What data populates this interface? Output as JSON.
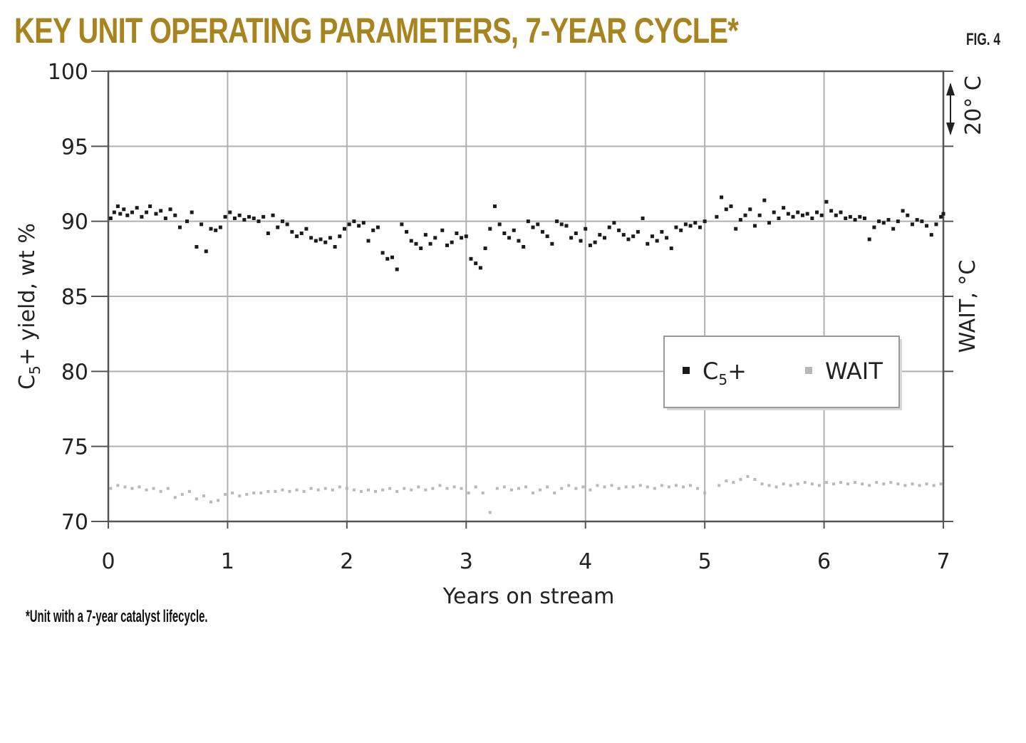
{
  "figure": {
    "title": "KEY UNIT OPERATING PARAMETERS, 7-YEAR CYCLE*",
    "label": "FIG. 4",
    "footnote": "*Unit with a 7-year catalyst lifecycle."
  },
  "colors": {
    "title": "#a8841e",
    "c5_points": "#1a1a1a",
    "wait_points": "#b8b8b8",
    "grid": "#b0b0b0",
    "axis": "#555555"
  },
  "chart_data": {
    "type": "scatter",
    "xlabel": "Years on stream",
    "ylabel": "C",
    "ylabel_sub": "5",
    "ylabel_rest": "+ yield, wt %",
    "y2label": "WAIT, °C",
    "y2_scale_note": "20° C",
    "xlim": [
      0,
      7
    ],
    "ylim": [
      70,
      100
    ],
    "xticks": [
      0,
      1,
      2,
      3,
      4,
      5,
      6,
      7
    ],
    "xtick_labels": [
      "0",
      "1",
      "2",
      "3",
      "4",
      "5",
      "6",
      "7"
    ],
    "yticks": [
      70,
      75,
      80,
      85,
      90,
      95,
      100
    ],
    "ytick_labels": [
      "70",
      "75",
      "80",
      "85",
      "90",
      "95",
      "100"
    ],
    "grid": true,
    "legend_position": "center-right",
    "legend": [
      {
        "label": "C",
        "sub": "5",
        "suffix": "+",
        "series": "c5"
      },
      {
        "label": "WAIT",
        "series": "wait"
      }
    ],
    "series": [
      {
        "key": "c5",
        "points": [
          [
            0.02,
            90.2
          ],
          [
            0.05,
            90.6
          ],
          [
            0.08,
            91.0
          ],
          [
            0.1,
            90.5
          ],
          [
            0.13,
            90.8
          ],
          [
            0.16,
            90.4
          ],
          [
            0.2,
            90.6
          ],
          [
            0.24,
            90.9
          ],
          [
            0.28,
            90.3
          ],
          [
            0.32,
            90.6
          ],
          [
            0.35,
            91.0
          ],
          [
            0.4,
            90.5
          ],
          [
            0.44,
            90.7
          ],
          [
            0.48,
            90.2
          ],
          [
            0.52,
            90.8
          ],
          [
            0.56,
            90.4
          ],
          [
            0.6,
            89.6
          ],
          [
            0.66,
            90.0
          ],
          [
            0.7,
            90.6
          ],
          [
            0.74,
            88.3
          ],
          [
            0.78,
            89.8
          ],
          [
            0.82,
            88.0
          ],
          [
            0.86,
            89.5
          ],
          [
            0.9,
            89.4
          ],
          [
            0.94,
            89.6
          ],
          [
            0.98,
            90.3
          ],
          [
            1.02,
            90.6
          ],
          [
            1.06,
            90.2
          ],
          [
            1.1,
            90.4
          ],
          [
            1.14,
            90.1
          ],
          [
            1.18,
            90.3
          ],
          [
            1.22,
            90.2
          ],
          [
            1.26,
            90.0
          ],
          [
            1.3,
            90.3
          ],
          [
            1.34,
            89.2
          ],
          [
            1.38,
            90.4
          ],
          [
            1.42,
            89.6
          ],
          [
            1.46,
            90.0
          ],
          [
            1.5,
            89.8
          ],
          [
            1.54,
            89.3
          ],
          [
            1.58,
            89.0
          ],
          [
            1.62,
            89.2
          ],
          [
            1.66,
            89.5
          ],
          [
            1.7,
            88.9
          ],
          [
            1.74,
            88.7
          ],
          [
            1.78,
            88.8
          ],
          [
            1.82,
            88.6
          ],
          [
            1.86,
            88.9
          ],
          [
            1.9,
            88.3
          ],
          [
            1.94,
            89.0
          ],
          [
            1.98,
            89.5
          ],
          [
            2.02,
            89.8
          ],
          [
            2.06,
            90.0
          ],
          [
            2.1,
            89.7
          ],
          [
            2.14,
            89.9
          ],
          [
            2.18,
            88.7
          ],
          [
            2.22,
            89.4
          ],
          [
            2.26,
            89.6
          ],
          [
            2.3,
            87.9
          ],
          [
            2.34,
            87.5
          ],
          [
            2.38,
            87.6
          ],
          [
            2.42,
            86.8
          ],
          [
            2.46,
            89.8
          ],
          [
            2.5,
            89.3
          ],
          [
            2.54,
            88.7
          ],
          [
            2.58,
            88.5
          ],
          [
            2.62,
            88.2
          ],
          [
            2.66,
            89.1
          ],
          [
            2.7,
            88.5
          ],
          [
            2.74,
            88.9
          ],
          [
            2.8,
            89.4
          ],
          [
            2.84,
            88.4
          ],
          [
            2.88,
            88.6
          ],
          [
            2.92,
            89.2
          ],
          [
            2.96,
            88.9
          ],
          [
            3.0,
            89.0
          ],
          [
            3.04,
            87.5
          ],
          [
            3.08,
            87.2
          ],
          [
            3.12,
            86.9
          ],
          [
            3.16,
            88.2
          ],
          [
            3.2,
            89.5
          ],
          [
            3.24,
            91.0
          ],
          [
            3.28,
            89.8
          ],
          [
            3.32,
            89.2
          ],
          [
            3.36,
            88.9
          ],
          [
            3.4,
            89.4
          ],
          [
            3.44,
            88.7
          ],
          [
            3.48,
            88.3
          ],
          [
            3.52,
            90.0
          ],
          [
            3.56,
            89.6
          ],
          [
            3.6,
            89.8
          ],
          [
            3.64,
            89.3
          ],
          [
            3.68,
            89.0
          ],
          [
            3.72,
            88.5
          ],
          [
            3.76,
            90.0
          ],
          [
            3.8,
            89.8
          ],
          [
            3.84,
            89.7
          ],
          [
            3.88,
            88.9
          ],
          [
            3.92,
            89.2
          ],
          [
            3.96,
            88.7
          ],
          [
            4.0,
            89.5
          ],
          [
            4.04,
            88.4
          ],
          [
            4.08,
            88.6
          ],
          [
            4.12,
            89.1
          ],
          [
            4.16,
            88.9
          ],
          [
            4.2,
            89.6
          ],
          [
            4.24,
            89.9
          ],
          [
            4.28,
            89.4
          ],
          [
            4.32,
            89.1
          ],
          [
            4.36,
            88.8
          ],
          [
            4.4,
            89.0
          ],
          [
            4.44,
            89.3
          ],
          [
            4.48,
            90.2
          ],
          [
            4.52,
            88.5
          ],
          [
            4.56,
            89.0
          ],
          [
            4.6,
            88.7
          ],
          [
            4.64,
            89.3
          ],
          [
            4.68,
            88.9
          ],
          [
            4.72,
            88.2
          ],
          [
            4.76,
            89.6
          ],
          [
            4.8,
            89.4
          ],
          [
            4.84,
            89.8
          ],
          [
            4.88,
            89.7
          ],
          [
            4.92,
            89.9
          ],
          [
            4.96,
            89.6
          ],
          [
            5.0,
            90.0
          ],
          [
            5.1,
            90.3
          ],
          [
            5.14,
            91.6
          ],
          [
            5.18,
            90.8
          ],
          [
            5.22,
            91.0
          ],
          [
            5.26,
            89.5
          ],
          [
            5.3,
            90.1
          ],
          [
            5.34,
            90.4
          ],
          [
            5.38,
            90.8
          ],
          [
            5.42,
            89.7
          ],
          [
            5.46,
            90.4
          ],
          [
            5.5,
            91.4
          ],
          [
            5.54,
            89.9
          ],
          [
            5.58,
            90.6
          ],
          [
            5.62,
            90.2
          ],
          [
            5.66,
            90.9
          ],
          [
            5.7,
            90.5
          ],
          [
            5.74,
            90.3
          ],
          [
            5.78,
            90.6
          ],
          [
            5.82,
            90.4
          ],
          [
            5.86,
            90.5
          ],
          [
            5.9,
            90.2
          ],
          [
            5.94,
            90.6
          ],
          [
            5.98,
            90.4
          ],
          [
            6.02,
            91.3
          ],
          [
            6.06,
            90.7
          ],
          [
            6.1,
            90.4
          ],
          [
            6.14,
            90.6
          ],
          [
            6.18,
            90.2
          ],
          [
            6.22,
            90.3
          ],
          [
            6.26,
            90.1
          ],
          [
            6.3,
            90.3
          ],
          [
            6.34,
            90.2
          ],
          [
            6.38,
            88.8
          ],
          [
            6.42,
            89.6
          ],
          [
            6.46,
            90.0
          ],
          [
            6.5,
            89.9
          ],
          [
            6.54,
            90.1
          ],
          [
            6.58,
            89.5
          ],
          [
            6.62,
            90.0
          ],
          [
            6.66,
            90.7
          ],
          [
            6.7,
            90.4
          ],
          [
            6.74,
            89.8
          ],
          [
            6.78,
            90.1
          ],
          [
            6.82,
            90.0
          ],
          [
            6.86,
            89.7
          ],
          [
            6.9,
            89.1
          ],
          [
            6.94,
            89.8
          ],
          [
            6.98,
            90.3
          ],
          [
            7.0,
            90.5
          ]
        ]
      },
      {
        "key": "wait",
        "points": [
          [
            0.02,
            72.2
          ],
          [
            0.08,
            72.4
          ],
          [
            0.14,
            72.3
          ],
          [
            0.2,
            72.2
          ],
          [
            0.26,
            72.3
          ],
          [
            0.32,
            72.1
          ],
          [
            0.38,
            72.2
          ],
          [
            0.44,
            72.0
          ],
          [
            0.5,
            72.2
          ],
          [
            0.56,
            71.6
          ],
          [
            0.62,
            71.8
          ],
          [
            0.68,
            72.0
          ],
          [
            0.74,
            71.5
          ],
          [
            0.8,
            71.7
          ],
          [
            0.86,
            71.3
          ],
          [
            0.92,
            71.4
          ],
          [
            0.98,
            71.8
          ],
          [
            1.04,
            71.9
          ],
          [
            1.1,
            71.7
          ],
          [
            1.16,
            71.8
          ],
          [
            1.22,
            71.9
          ],
          [
            1.28,
            71.9
          ],
          [
            1.34,
            72.0
          ],
          [
            1.4,
            72.0
          ],
          [
            1.46,
            72.1
          ],
          [
            1.52,
            72.0
          ],
          [
            1.58,
            72.1
          ],
          [
            1.64,
            72.0
          ],
          [
            1.7,
            72.2
          ],
          [
            1.76,
            72.1
          ],
          [
            1.82,
            72.2
          ],
          [
            1.88,
            72.1
          ],
          [
            1.94,
            72.3
          ],
          [
            2.0,
            72.2
          ],
          [
            2.06,
            72.1
          ],
          [
            2.12,
            72.0
          ],
          [
            2.18,
            72.1
          ],
          [
            2.24,
            72.0
          ],
          [
            2.3,
            72.1
          ],
          [
            2.36,
            72.2
          ],
          [
            2.42,
            72.0
          ],
          [
            2.48,
            72.2
          ],
          [
            2.54,
            72.1
          ],
          [
            2.6,
            72.3
          ],
          [
            2.66,
            72.1
          ],
          [
            2.72,
            72.2
          ],
          [
            2.78,
            72.4
          ],
          [
            2.84,
            72.2
          ],
          [
            2.9,
            72.3
          ],
          [
            2.96,
            72.2
          ],
          [
            3.02,
            71.9
          ],
          [
            3.08,
            72.3
          ],
          [
            3.14,
            71.9
          ],
          [
            3.2,
            70.6
          ],
          [
            3.26,
            72.2
          ],
          [
            3.32,
            72.3
          ],
          [
            3.38,
            72.1
          ],
          [
            3.44,
            72.2
          ],
          [
            3.5,
            72.3
          ],
          [
            3.56,
            71.9
          ],
          [
            3.62,
            72.1
          ],
          [
            3.68,
            72.3
          ],
          [
            3.74,
            71.9
          ],
          [
            3.8,
            72.2
          ],
          [
            3.86,
            72.4
          ],
          [
            3.92,
            72.2
          ],
          [
            3.98,
            72.3
          ],
          [
            4.04,
            72.1
          ],
          [
            4.1,
            72.4
          ],
          [
            4.16,
            72.3
          ],
          [
            4.22,
            72.4
          ],
          [
            4.28,
            72.2
          ],
          [
            4.34,
            72.3
          ],
          [
            4.4,
            72.3
          ],
          [
            4.46,
            72.4
          ],
          [
            4.52,
            72.3
          ],
          [
            4.58,
            72.2
          ],
          [
            4.64,
            72.4
          ],
          [
            4.7,
            72.3
          ],
          [
            4.76,
            72.4
          ],
          [
            4.82,
            72.3
          ],
          [
            4.88,
            72.4
          ],
          [
            4.94,
            72.2
          ],
          [
            5.0,
            71.9
          ],
          [
            5.12,
            72.4
          ],
          [
            5.18,
            72.7
          ],
          [
            5.24,
            72.6
          ],
          [
            5.3,
            72.8
          ],
          [
            5.36,
            73.0
          ],
          [
            5.42,
            72.8
          ],
          [
            5.48,
            72.5
          ],
          [
            5.54,
            72.4
          ],
          [
            5.6,
            72.3
          ],
          [
            5.66,
            72.5
          ],
          [
            5.72,
            72.4
          ],
          [
            5.78,
            72.5
          ],
          [
            5.84,
            72.6
          ],
          [
            5.9,
            72.5
          ],
          [
            5.96,
            72.4
          ],
          [
            6.02,
            72.6
          ],
          [
            6.08,
            72.5
          ],
          [
            6.14,
            72.6
          ],
          [
            6.2,
            72.5
          ],
          [
            6.26,
            72.6
          ],
          [
            6.32,
            72.5
          ],
          [
            6.38,
            72.4
          ],
          [
            6.44,
            72.6
          ],
          [
            6.5,
            72.5
          ],
          [
            6.56,
            72.6
          ],
          [
            6.62,
            72.5
          ],
          [
            6.68,
            72.4
          ],
          [
            6.74,
            72.5
          ],
          [
            6.8,
            72.4
          ],
          [
            6.86,
            72.5
          ],
          [
            6.92,
            72.4
          ],
          [
            6.98,
            72.5
          ]
        ]
      }
    ]
  }
}
